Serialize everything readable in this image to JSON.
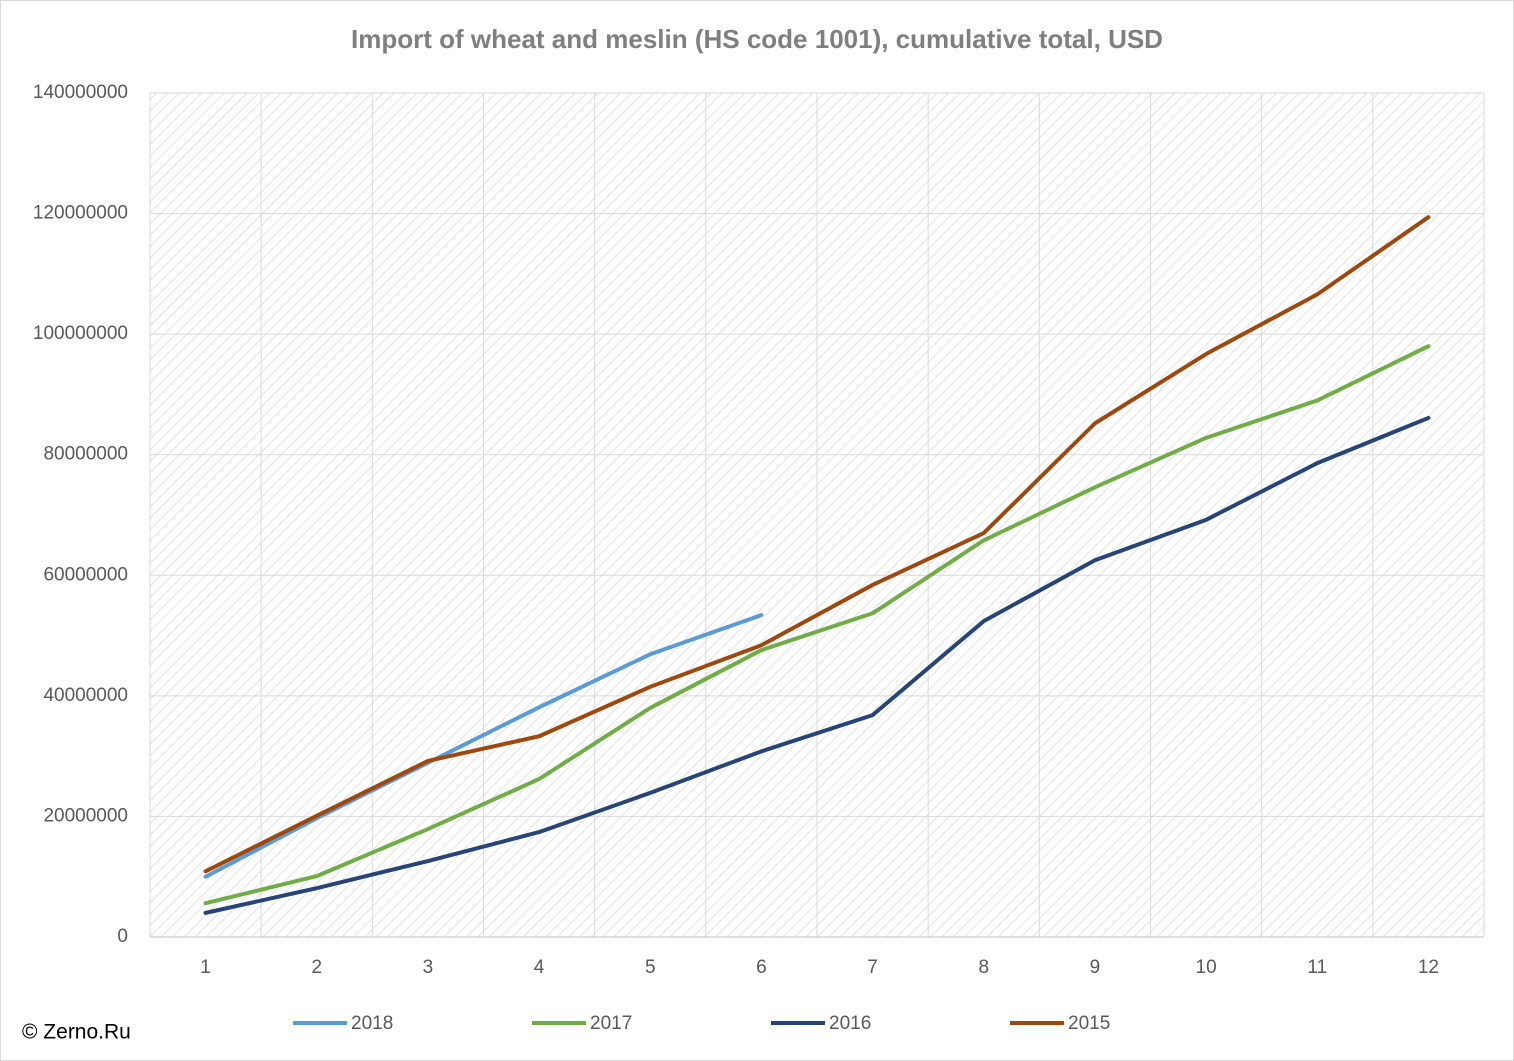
{
  "chart_data": {
    "type": "line",
    "title": "Import of wheat and meslin (HS code 1001), cumulative total, USD",
    "watermark": "© Zerno.Ru",
    "categories": [
      "1",
      "2",
      "3",
      "4",
      "5",
      "6",
      "7",
      "8",
      "9",
      "10",
      "11",
      "12"
    ],
    "series": [
      {
        "name": "2018",
        "color": "#5b9bd5",
        "values": [
          10000000,
          19700000,
          28900000,
          38100000,
          46900000,
          53400000,
          null,
          null,
          null,
          null,
          null,
          null
        ]
      },
      {
        "name": "2017",
        "color": "#70ad47",
        "values": [
          5600000,
          10100000,
          17900000,
          26200000,
          38000000,
          47600000,
          53700000,
          65800000,
          74600000,
          82800000,
          89000000,
          98000000
        ]
      },
      {
        "name": "2016",
        "color": "#264478",
        "values": [
          4000000,
          8100000,
          12600000,
          17400000,
          23900000,
          30800000,
          36800000,
          52400000,
          62500000,
          69200000,
          78600000,
          86100000
        ]
      },
      {
        "name": "2015",
        "color": "#9e480e",
        "values": [
          10900000,
          20100000,
          29200000,
          33300000,
          41500000,
          48400000,
          58400000,
          67000000,
          85200000,
          96700000,
          106600000,
          119400000
        ]
      }
    ],
    "ylim": [
      0,
      140000000
    ],
    "yticks": [
      0,
      20000000,
      40000000,
      60000000,
      80000000,
      100000000,
      120000000,
      140000000
    ],
    "grid": true,
    "legend": "bottom"
  }
}
